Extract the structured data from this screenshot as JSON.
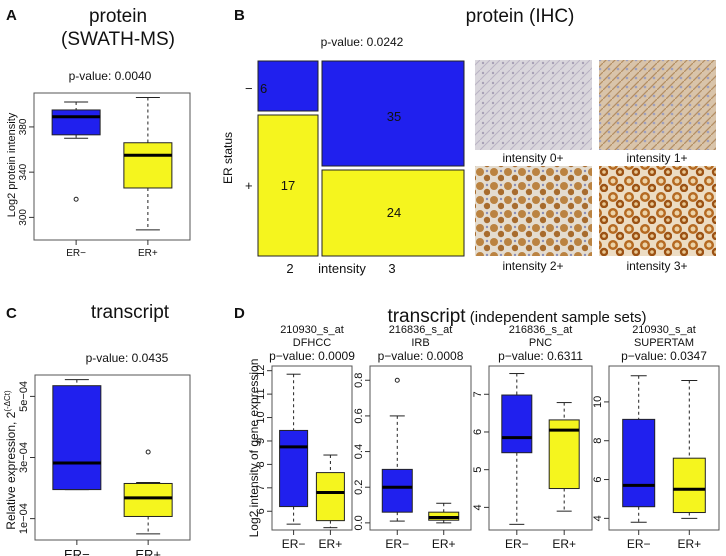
{
  "colors": {
    "er_neg": "#2020ee",
    "er_pos": "#f5f51e",
    "plot_border": "#555555"
  },
  "panel_a": {
    "letter": "A",
    "title_line1": "protein",
    "title_line2": "(SWATH-MS)",
    "pvalue": "p-value: 0.0040",
    "ylabel": "Log2 protein intensity"
  },
  "panel_b": {
    "letter": "B",
    "title": "protein (IHC)",
    "pvalue": "p-value:  0.0242",
    "ylabel": "ER status",
    "row_minus": "−",
    "row_plus": "+",
    "col_2": "2",
    "xlabel": "intensity",
    "col_3": "3",
    "cell_neg_2": "6",
    "cell_neg_3": "35",
    "cell_pos_2": "17",
    "cell_pos_3": "24",
    "img_labels": [
      "intensity 0+",
      "intensity 1+",
      "intensity 2+",
      "intensity 3+"
    ]
  },
  "panel_c": {
    "letter": "C",
    "title": "transcript",
    "pvalue": "p-value: 0.0435",
    "ylabel": "Relative expression, 2",
    "ylabel_sup": "(-ΔCt)"
  },
  "panel_d": {
    "letter": "D",
    "title_main": "transcript",
    "title_sub": "(independent sample sets)",
    "ylabel": "Log2 intensity of gene expression"
  },
  "chart_data": [
    {
      "type": "box",
      "panel": "A",
      "categories": [
        "ER−",
        "ER+"
      ],
      "ylim": [
        280,
        410
      ],
      "yticks": [
        "300",
        "340",
        "380"
      ],
      "boxes": [
        {
          "name": "ER−",
          "whisker_low": 370,
          "q1": 373,
          "median": 389,
          "q3": 395,
          "whisker_high": 402,
          "outliers": [
            316
          ]
        },
        {
          "name": "ER+",
          "whisker_low": 289,
          "q1": 326,
          "median": 355,
          "q3": 366,
          "whisker_high": 406,
          "outliers": []
        }
      ]
    },
    {
      "type": "mosaic",
      "panel": "B",
      "rows": [
        "−",
        "+"
      ],
      "columns": [
        "2",
        "3"
      ],
      "counts": [
        [
          6,
          35
        ],
        [
          17,
          24
        ]
      ]
    },
    {
      "type": "box",
      "panel": "C",
      "categories": [
        "ER−",
        "ER+"
      ],
      "ylim": [
        3e-05,
        0.00057
      ],
      "yticks": [
        "1e−04",
        "3e−04",
        "5e−04"
      ],
      "boxes": [
        {
          "name": "ER−",
          "whisker_low": 0.000195,
          "q1": 0.000195,
          "median": 0.000282,
          "q3": 0.000535,
          "whisker_high": 0.000555,
          "outliers": []
        },
        {
          "name": "ER+",
          "whisker_low": 5e-05,
          "q1": 0.000107,
          "median": 0.000168,
          "q3": 0.000215,
          "whisker_high": 0.000218,
          "outliers": [
            0.000318
          ]
        }
      ]
    },
    {
      "type": "box",
      "panel": "D1",
      "title_probe": "210930_s_at",
      "title_set": "DFHCC",
      "pvalue": "p−value:  0.0009",
      "categories": [
        "ER−",
        "ER+"
      ],
      "ylim": [
        5.2,
        12.2
      ],
      "yticks": [
        "6",
        "7",
        "8",
        "9",
        "10",
        "11",
        "12"
      ],
      "boxes": [
        {
          "name": "ER−",
          "whisker_low": 5.45,
          "q1": 6.2,
          "median": 8.75,
          "q3": 9.45,
          "whisker_high": 11.85,
          "outliers": []
        },
        {
          "name": "ER+",
          "whisker_low": 5.3,
          "q1": 5.6,
          "median": 6.8,
          "q3": 7.65,
          "whisker_high": 8.4,
          "outliers": []
        }
      ]
    },
    {
      "type": "box",
      "panel": "D2",
      "title_probe": "216836_s_at",
      "title_set": "IRB",
      "pvalue": "p−value:  0.0008",
      "categories": [
        "ER−",
        "ER+"
      ],
      "ylim": [
        -0.04,
        0.88
      ],
      "yticks": [
        "0.0",
        "0.2",
        "0.4",
        "0.6",
        "0.8"
      ],
      "boxes": [
        {
          "name": "ER−",
          "whisker_low": 0.01,
          "q1": 0.06,
          "median": 0.2,
          "q3": 0.3,
          "whisker_high": 0.6,
          "outliers": [
            0.8
          ]
        },
        {
          "name": "ER+",
          "whisker_low": 0.0,
          "q1": 0.015,
          "median": 0.03,
          "q3": 0.06,
          "whisker_high": 0.11,
          "outliers": []
        }
      ]
    },
    {
      "type": "box",
      "panel": "D3",
      "title_probe": "216836_s_at",
      "title_set": "PNC",
      "pvalue": "p−value:  0.6311",
      "categories": [
        "ER−",
        "ER+"
      ],
      "ylim": [
        3.4,
        7.75
      ],
      "yticks": [
        "4",
        "5",
        "6",
        "7"
      ],
      "boxes": [
        {
          "name": "ER−",
          "whisker_low": 3.55,
          "q1": 5.45,
          "median": 5.85,
          "q3": 6.98,
          "whisker_high": 7.55,
          "outliers": []
        },
        {
          "name": "ER+",
          "whisker_low": 3.9,
          "q1": 4.5,
          "median": 6.05,
          "q3": 6.32,
          "whisker_high": 6.78,
          "outliers": []
        }
      ]
    },
    {
      "type": "box",
      "panel": "D4",
      "title_probe": "210930_s_at",
      "title_set": "SUPERTAM",
      "pvalue": "p−value:  0.0347",
      "categories": [
        "ER−",
        "ER+"
      ],
      "ylim": [
        3.4,
        11.85
      ],
      "yticks": [
        "4",
        "6",
        "8",
        "10"
      ],
      "boxes": [
        {
          "name": "ER−",
          "whisker_low": 3.8,
          "q1": 4.6,
          "median": 5.7,
          "q3": 9.1,
          "whisker_high": 11.35,
          "outliers": []
        },
        {
          "name": "ER+",
          "whisker_low": 4.0,
          "q1": 4.3,
          "median": 5.5,
          "q3": 7.1,
          "whisker_high": 11.1,
          "outliers": []
        }
      ]
    }
  ]
}
